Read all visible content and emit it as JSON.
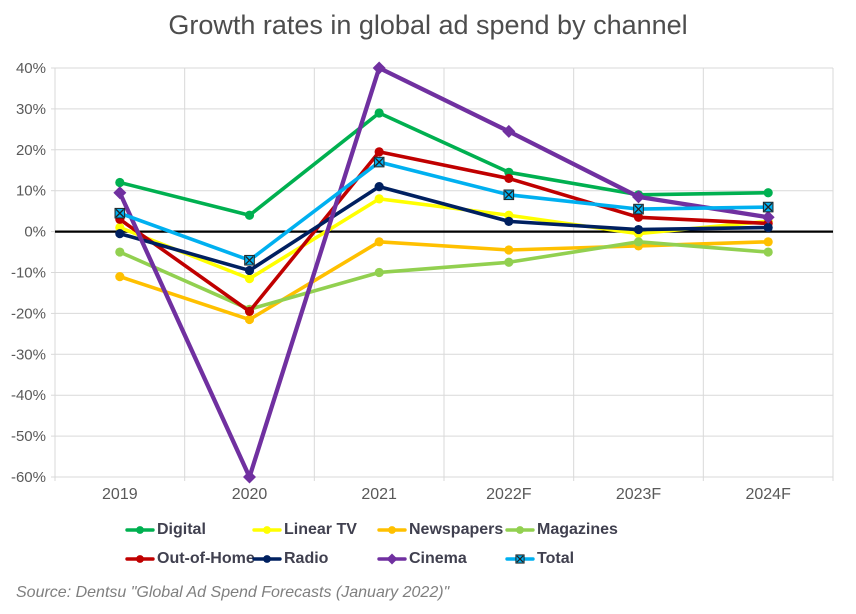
{
  "title": "Growth rates in global ad spend by channel",
  "source": "Source: Dentsu \"Global Ad Spend Forecasts (January 2022)\"",
  "colors": {
    "title_text": "#4d4d4d",
    "axis_tick_text": "#595959",
    "gridline": "#d9d9d9",
    "zero_line": "#000000",
    "legend_text": "#40404f",
    "source_text": "#7f7f7f",
    "background": "#ffffff"
  },
  "chart_data": {
    "type": "line",
    "title": "Growth rates in global ad spend by channel",
    "xlabel": "",
    "ylabel": "",
    "categories": [
      "2019",
      "2020",
      "2021",
      "2022F",
      "2023F",
      "2024F"
    ],
    "ylim": [
      -60,
      40
    ],
    "y_tick_step": 10,
    "y_ticks": [
      "40%",
      "30%",
      "20%",
      "10%",
      "0%",
      "-10%",
      "-20%",
      "-30%",
      "-40%",
      "-50%",
      "-60%"
    ],
    "grid": true,
    "zero_line": true,
    "legend_position": "bottom",
    "series": [
      {
        "name": "Digital",
        "color": "#00B050",
        "marker": "circle",
        "values": [
          12,
          4,
          29,
          14.5,
          9,
          9.5
        ]
      },
      {
        "name": "Linear TV",
        "color": "#FFFF00",
        "marker": "circle",
        "values": [
          1,
          -11.5,
          8,
          4,
          -0.5,
          2.5
        ]
      },
      {
        "name": "Newspapers",
        "color": "#FFC000",
        "marker": "circle",
        "values": [
          -11,
          -21.5,
          -2.5,
          -4.5,
          -3.5,
          -2.5
        ]
      },
      {
        "name": "Magazines",
        "color": "#92D050",
        "marker": "circle",
        "values": [
          -5,
          -19,
          -10,
          -7.5,
          -2.5,
          -5
        ]
      },
      {
        "name": "Out-of-Home",
        "color": "#C00000",
        "marker": "circle",
        "values": [
          3,
          -19.5,
          19.5,
          13,
          3.5,
          2
        ]
      },
      {
        "name": "Radio",
        "color": "#002060",
        "marker": "circle",
        "values": [
          -0.5,
          -9.5,
          11,
          2.5,
          0.5,
          1
        ]
      },
      {
        "name": "Cinema",
        "color": "#7030A0",
        "marker": "diamond",
        "values": [
          9.5,
          -60,
          40,
          24.5,
          8.5,
          3.5
        ]
      },
      {
        "name": "Total",
        "color": "#00B0F0",
        "marker": "square-x",
        "values": [
          4.5,
          -7,
          17,
          9,
          5.5,
          6
        ]
      }
    ]
  }
}
